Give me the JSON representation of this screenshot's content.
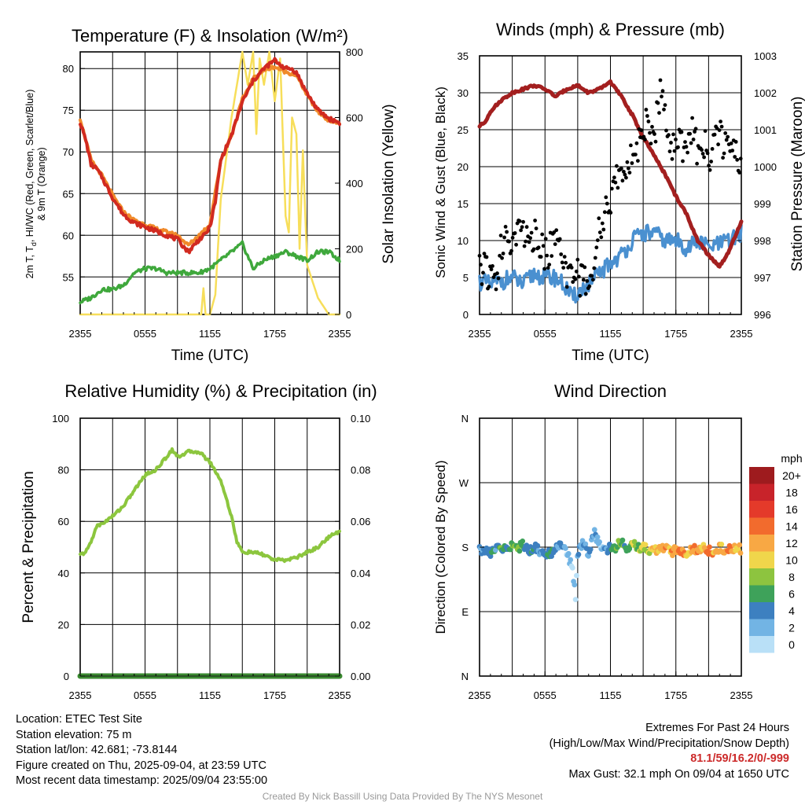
{
  "colors": {
    "temperature": "#d12a20",
    "dewpoint": "#3fa83c",
    "temp_9m": "#f08a2a",
    "insolation": "#f7de5a",
    "wind": "#4a90d0",
    "gust": "#000000",
    "pressure": "#a31f1f",
    "humidity": "#8cc63e",
    "precipitation": "#3a8a30"
  },
  "footer": {
    "location": "Location: ETEC Test Site",
    "elevation": "Station elevation: 75 m",
    "latlon": "Station lat/lon: 42.681; -73.8144",
    "created": "Figure created on Thu, 2025-09-04, at 23:59 UTC",
    "recent": "Most recent data timestamp: 2025/09/04 23:55:00",
    "extremes_title": "Extremes For Past 24 Hours",
    "extremes_sub": "(High/Low/Max Wind/Precipitation/Snow Depth)",
    "extremes_values": "81.1/59/16.2/0/-999",
    "max_gust": "Max Gust: 32.1 mph On 09/04 at 1650 UTC",
    "credit": "Created By Nick Bassill Using Data Provided By The NYS Mesonet"
  },
  "chart_data": [
    {
      "type": "line",
      "title": "Temperature (F) & Insolation (W/m²)",
      "xlabel": "Time (UTC)",
      "ylabel": "2m T, Tₐ, HI/WC (Red, Green, Scarlet/Blue) & 9m T (Orange)",
      "ylabel_line1": "2m T, T",
      "ylabel_sub": "d",
      "ylabel_line1b": ", HI/WC (Red, Green, Scarlet/Blue)",
      "ylabel_line2": "& 9m T (Orange)",
      "y2label": "Solar Insolation (Yellow)",
      "x_ticks": [
        "2355",
        "0555",
        "1155",
        "1755",
        "2355"
      ],
      "x_hours": [
        0,
        6,
        12,
        18,
        24
      ],
      "ylim": [
        50.5,
        82
      ],
      "y_ticks": [
        55,
        60,
        65,
        70,
        75,
        80
      ],
      "y2lim": [
        0,
        800
      ],
      "y2_ticks": [
        0,
        200,
        400,
        600,
        800
      ],
      "grid": true,
      "series": [
        {
          "name": "2m T",
          "axis": "left",
          "x": [
            0,
            0.5,
            1,
            1.5,
            2,
            3,
            4,
            5,
            6,
            7,
            8,
            9,
            10,
            11,
            11.5,
            12,
            12.5,
            13,
            14,
            15,
            16,
            17,
            17.5,
            18,
            18.5,
            19,
            19.5,
            20,
            21,
            22,
            23,
            24
          ],
          "values": [
            73.5,
            71.5,
            68.5,
            68,
            67,
            64.5,
            62.5,
            61.5,
            61,
            60.5,
            60,
            59.5,
            58,
            59.5,
            60,
            61,
            64,
            69,
            72,
            76,
            78.5,
            80,
            80.5,
            81,
            80.5,
            80,
            80,
            79.5,
            77,
            75,
            74,
            73.5
          ]
        },
        {
          "name": "9m T",
          "axis": "left",
          "x": [
            0,
            1,
            2,
            3,
            4,
            5,
            6,
            7,
            8,
            9,
            10,
            11,
            12,
            13,
            14,
            15,
            16,
            17,
            18,
            19,
            20,
            21,
            22,
            23,
            24
          ],
          "values": [
            74,
            69,
            67.2,
            64.8,
            62.8,
            61.8,
            61.3,
            60.8,
            60.4,
            60,
            58.8,
            60,
            61.3,
            69,
            72,
            76.3,
            78.8,
            79.8,
            80.2,
            79.6,
            79.2,
            76.8,
            74.8,
            73.8,
            73.4
          ]
        },
        {
          "name": "Dewpoint",
          "axis": "left",
          "x": [
            0,
            1,
            2,
            3,
            4,
            5,
            6,
            7,
            8,
            9,
            10,
            11,
            12,
            13,
            14,
            15,
            16,
            17,
            18,
            19,
            20,
            21,
            22,
            23,
            24
          ],
          "values": [
            52,
            52.5,
            53.5,
            53.5,
            54,
            55.5,
            56,
            56,
            55.5,
            55.5,
            55.5,
            55.5,
            56,
            57,
            58,
            59,
            56,
            57,
            57.5,
            58,
            57.5,
            57,
            58,
            58,
            57
          ]
        },
        {
          "name": "Insolation",
          "axis": "right",
          "x": [
            0,
            4,
            8,
            11.2,
            11.4,
            11.6,
            12,
            12.5,
            13,
            14,
            15,
            15.5,
            16,
            16.3,
            16.6,
            17,
            17.5,
            18,
            18.5,
            19,
            19.3,
            19.6,
            20,
            20.3,
            20.6,
            21,
            21.5,
            22,
            23,
            24
          ],
          "values": [
            0,
            0,
            0,
            0,
            80,
            0,
            0,
            60,
            350,
            600,
            800,
            700,
            800,
            550,
            780,
            700,
            800,
            650,
            780,
            300,
            250,
            600,
            550,
            200,
            500,
            150,
            100,
            50,
            0,
            0
          ]
        }
      ]
    },
    {
      "type": "scatter",
      "title": "Winds (mph) & Pressure (mb)",
      "xlabel": "Time (UTC)",
      "ylabel": "Sonic Wind & Gust (Blue, Black)",
      "y2label": "Station Pressure (Maroon)",
      "x_ticks": [
        "2355",
        "0555",
        "1155",
        "1755",
        "2355"
      ],
      "x_hours": [
        0,
        6,
        12,
        18,
        24
      ],
      "ylim": [
        0,
        35
      ],
      "y_ticks": [
        0,
        5,
        10,
        15,
        20,
        25,
        30,
        35
      ],
      "y2lim": [
        996,
        1003
      ],
      "y2_ticks": [
        996,
        997,
        998,
        999,
        1000,
        1001,
        1002,
        1003
      ],
      "grid": true,
      "series": [
        {
          "name": "Sonic Wind",
          "axis": "left",
          "x": [
            0,
            1,
            2,
            3,
            4,
            5,
            6,
            7,
            8,
            8.5,
            9,
            10,
            11,
            12,
            13,
            14,
            15,
            16,
            17,
            18,
            19,
            20,
            21,
            22,
            23,
            24
          ],
          "values": [
            4.5,
            4,
            4.5,
            5,
            4,
            5.5,
            5,
            5,
            3.5,
            2,
            3,
            4,
            5.5,
            7,
            8,
            10,
            11,
            11,
            10,
            10,
            9,
            10,
            9,
            9.5,
            10,
            11
          ]
        },
        {
          "name": "Gust",
          "axis": "left",
          "x": [
            0,
            0.5,
            1,
            1.5,
            2,
            2.5,
            3,
            3.5,
            4,
            4.5,
            5,
            5.5,
            6,
            6.5,
            7,
            7.5,
            8,
            8.5,
            9,
            9.5,
            10,
            10.5,
            11,
            11.5,
            12,
            12.5,
            13,
            13.5,
            14,
            14.5,
            15,
            15.5,
            16,
            16.5,
            17,
            17.5,
            18,
            18.5,
            19,
            19.5,
            20,
            20.5,
            21,
            21.5,
            22,
            22.5,
            23,
            23.5,
            24
          ],
          "values": [
            7,
            6,
            5,
            4.5,
            9,
            10,
            11,
            12,
            12,
            10,
            11,
            10,
            8,
            9,
            10,
            7,
            5,
            4,
            5,
            4.5,
            5,
            7,
            11,
            13,
            16,
            18,
            19,
            21,
            22,
            23,
            25,
            26,
            24,
            30,
            27,
            24,
            22,
            23,
            21,
            25,
            22,
            24,
            21,
            23,
            25,
            22,
            23,
            21,
            20
          ]
        },
        {
          "name": "Station Pressure",
          "axis": "right",
          "x": [
            0,
            0.5,
            1,
            2,
            3,
            4,
            5,
            6,
            7,
            8,
            9,
            10,
            11,
            12,
            12.5,
            13,
            14,
            15,
            16,
            17,
            17.5,
            18,
            19,
            20,
            21,
            22,
            22.5,
            23,
            24
          ],
          "values": [
            1001.1,
            1001.2,
            1001.5,
            1001.8,
            1002.0,
            1002.1,
            1002.2,
            1002.1,
            1001.9,
            1002.1,
            1002.2,
            1002.0,
            1002.1,
            1002.3,
            1002.1,
            1001.9,
            1001.4,
            1000.8,
            1000.3,
            999.8,
            999.5,
            999.2,
            998.7,
            998.0,
            997.6,
            997.3,
            997.5,
            997.8,
            998.5
          ]
        }
      ]
    },
    {
      "type": "line",
      "title": "Relative Humidity (%) & Precipitation (in)",
      "xlabel": "",
      "ylabel": "Percent & Precipitation",
      "x_ticks": [
        "2355",
        "0555",
        "1155",
        "1755",
        "2355"
      ],
      "x_hours": [
        0,
        6,
        12,
        18,
        24
      ],
      "ylim": [
        0,
        100
      ],
      "y_ticks": [
        0,
        20,
        40,
        60,
        80,
        100
      ],
      "y2lim": [
        0,
        0.1
      ],
      "y2_ticks": [
        "0.00",
        "0.02",
        "0.04",
        "0.06",
        "0.08",
        "0.10"
      ],
      "grid": true,
      "series": [
        {
          "name": "Relative Humidity",
          "axis": "left",
          "x": [
            0,
            0.5,
            1,
            1.5,
            2,
            3,
            4,
            5,
            6,
            7,
            8,
            8.5,
            9,
            10,
            11,
            12,
            13,
            14,
            14.5,
            15,
            16,
            17,
            18,
            19,
            20,
            21,
            22,
            23,
            24
          ],
          "values": [
            47,
            48,
            52,
            58,
            59,
            62,
            66,
            72,
            78,
            80,
            85,
            88,
            85,
            87,
            87,
            83,
            76,
            62,
            52,
            48,
            48,
            47,
            45,
            45,
            46,
            48,
            50,
            54,
            56
          ]
        },
        {
          "name": "Precipitation",
          "axis": "right",
          "x": [
            0,
            24
          ],
          "values": [
            0,
            0
          ]
        }
      ]
    },
    {
      "type": "scatter",
      "title": "Wind Direction",
      "ylabel": "Direction (Colored By Speed)",
      "x_ticks": [
        "2355",
        "0555",
        "1155",
        "1755",
        "2355"
      ],
      "x_hours": [
        0,
        6,
        12,
        18,
        24
      ],
      "y_ticks": [
        "0",
        "E",
        "S",
        "W",
        "N"
      ],
      "y_tick_labels": [
        "N",
        "E",
        "S",
        "W",
        "N"
      ],
      "ylim": [
        0,
        360
      ],
      "legend_title": "mph",
      "legend_placement": "right",
      "legend_labels": [
        "20+",
        "18",
        "16",
        "14",
        "12",
        "10",
        "8",
        "6",
        "4",
        "2",
        "0"
      ],
      "legend_colors": [
        "#9e1b1e",
        "#c8232a",
        "#e43a2a",
        "#f26b2d",
        "#f8a844",
        "#f0d64b",
        "#8dc43f",
        "#3ea25a",
        "#3d80c0",
        "#72b4e4",
        "#b9e0f7"
      ],
      "series": [
        {
          "name": "Direction",
          "x": [
            0,
            0.5,
            1,
            1.5,
            2,
            2.5,
            3,
            3.5,
            4,
            4.5,
            5,
            5.5,
            6,
            6.5,
            7,
            7.5,
            8,
            8.3,
            8.5,
            8.8,
            9,
            9.5,
            10,
            10.5,
            11,
            11.5,
            12,
            12.5,
            13,
            13.5,
            14,
            14.5,
            15,
            15.5,
            16,
            16.5,
            17,
            17.5,
            18,
            18.5,
            19,
            19.5,
            20,
            20.5,
            21,
            21.5,
            22,
            22.5,
            23,
            23.5,
            24
          ],
          "values": [
            175,
            178,
            172,
            180,
            176,
            180,
            182,
            178,
            183,
            176,
            180,
            175,
            170,
            172,
            178,
            182,
            175,
            160,
            150,
            110,
            170,
            185,
            170,
            200,
            185,
            178,
            178,
            180,
            190,
            175,
            185,
            178,
            180,
            176,
            178,
            175,
            180,
            172,
            178,
            176,
            170,
            180,
            174,
            178,
            176,
            170,
            180,
            175,
            178,
            180,
            177
          ],
          "speeds": [
            4,
            3,
            5,
            4,
            6,
            5,
            6,
            7,
            5,
            4,
            4,
            3,
            4,
            5,
            3,
            4,
            2,
            1,
            1,
            0,
            3,
            4,
            2,
            3,
            1,
            3,
            4,
            7,
            8,
            5,
            9,
            7,
            10,
            9,
            11,
            12,
            13,
            12,
            12,
            14,
            11,
            12,
            13,
            10,
            14,
            12,
            11,
            13,
            12,
            10,
            12
          ]
        }
      ]
    }
  ]
}
